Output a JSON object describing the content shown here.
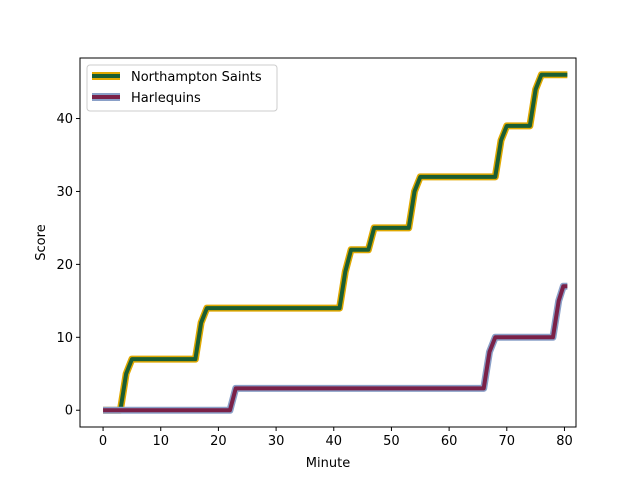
{
  "chart_data": {
    "type": "line",
    "title": "",
    "xlabel": "Minute",
    "ylabel": "Score",
    "xlim": [
      -4,
      82
    ],
    "ylim": [
      -2.3,
      48.3
    ],
    "xticks": [
      0,
      10,
      20,
      30,
      40,
      50,
      60,
      70,
      80
    ],
    "yticks": [
      0,
      10,
      20,
      30,
      40
    ],
    "grid": false,
    "legend": "top-left",
    "series": [
      {
        "name": "Northampton Saints",
        "color": "#1a5e32",
        "edge_color": "#e0a800",
        "points": [
          [
            0,
            0
          ],
          [
            3,
            0
          ],
          [
            4,
            5
          ],
          [
            5,
            7
          ],
          [
            16,
            7
          ],
          [
            17,
            12
          ],
          [
            18,
            14
          ],
          [
            41,
            14
          ],
          [
            42,
            19
          ],
          [
            43,
            22
          ],
          [
            46,
            22
          ],
          [
            47,
            25
          ],
          [
            53,
            25
          ],
          [
            54,
            30
          ],
          [
            55,
            32
          ],
          [
            68,
            32
          ],
          [
            69,
            37
          ],
          [
            70,
            39
          ],
          [
            74,
            39
          ],
          [
            75,
            44
          ],
          [
            76,
            46
          ],
          [
            80.5,
            46
          ]
        ]
      },
      {
        "name": "Harlequins",
        "color": "#7a2148",
        "edge_color": "#8aa0c8",
        "points": [
          [
            0,
            0
          ],
          [
            22,
            0
          ],
          [
            23,
            3
          ],
          [
            66,
            3
          ],
          [
            67,
            8
          ],
          [
            68,
            10
          ],
          [
            78,
            10
          ],
          [
            79,
            15
          ],
          [
            79.8,
            17
          ],
          [
            80.5,
            17
          ]
        ]
      }
    ]
  }
}
